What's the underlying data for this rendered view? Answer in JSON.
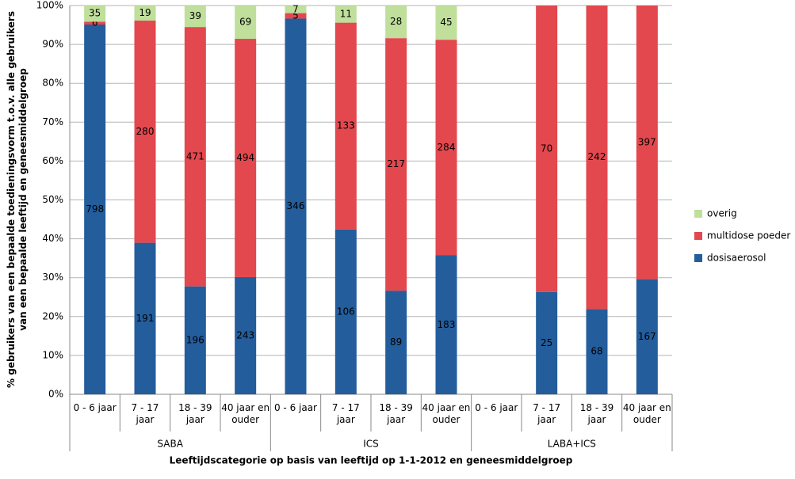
{
  "chart_data": {
    "type": "bar",
    "stacking": "percent",
    "y_label": "% gebruikers van een bepaalde toedieningsvorm t.o.v. alle gebruikers van een bepaalde leeftijd en geneesmiddelgroep",
    "x_label": "Leeftijdscategorie op basis van leeftijd op 1-1-2012 en geneesmiddelgroep",
    "groups": [
      "SABA",
      "ICS",
      "LABA+ICS"
    ],
    "categories": [
      "0 - 6 jaar",
      "7 - 17 jaar",
      "18 - 39 jaar",
      "40 jaar en ouder",
      "0 - 6 jaar",
      "7 - 17 jaar",
      "18 - 39 jaar",
      "40 jaar en ouder",
      "0 - 6 jaar",
      "7 - 17 jaar",
      "18 - 39 jaar",
      "40 jaar en ouder"
    ],
    "series": [
      {
        "name": "dosisaerosol",
        "color": "#235d9c",
        "values": [
          798,
          191,
          196,
          243,
          346,
          106,
          89,
          183,
          null,
          25,
          68,
          167
        ]
      },
      {
        "name": "multidose poeder",
        "color": "#e2484e",
        "values": [
          6,
          280,
          471,
          494,
          5,
          133,
          217,
          284,
          null,
          70,
          242,
          397
        ]
      },
      {
        "name": "overig",
        "color": "#bfdf9b",
        "values": [
          35,
          19,
          39,
          69,
          7,
          11,
          28,
          45,
          null,
          null,
          null,
          null
        ]
      }
    ],
    "ylim": [
      0,
      100
    ],
    "yticks": [
      {
        "value": 0,
        "label": "0%"
      },
      {
        "value": 10,
        "label": "10%"
      },
      {
        "value": 20,
        "label": "20%"
      },
      {
        "value": 30,
        "label": "30%"
      },
      {
        "value": 40,
        "label": "40%"
      },
      {
        "value": 50,
        "label": "50%"
      },
      {
        "value": 60,
        "label": "60%"
      },
      {
        "value": 70,
        "label": "70%"
      },
      {
        "value": 80,
        "label": "80%"
      },
      {
        "value": 90,
        "label": "90%"
      },
      {
        "value": 100,
        "label": "100%"
      }
    ],
    "grid": true,
    "legend": "right"
  }
}
